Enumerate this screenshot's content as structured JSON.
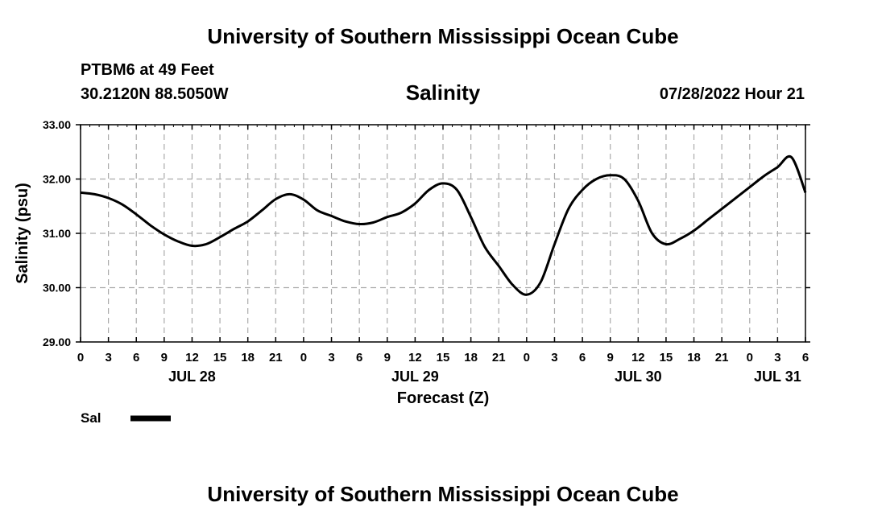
{
  "header": {
    "title": "University of Southern Mississippi Ocean Cube",
    "station": "PTBM6 at 49 Feet",
    "coords": "30.2120N  88.5050W",
    "datetime": "07/28/2022 Hour 21",
    "footer_title": "University of Southern Mississippi Ocean Cube"
  },
  "colors": {
    "line": "#000000",
    "grid": "#aaaaaa",
    "background": "#ffffff"
  },
  "chart_data": {
    "type": "line",
    "title": "Salinity",
    "xlabel": "Forecast (Z)",
    "ylabel": "Salinity (psu)",
    "xlim": [
      0,
      78
    ],
    "ylim": [
      29.0,
      33.0
    ],
    "grid": true,
    "y_ticks": [
      29.0,
      30.0,
      31.0,
      32.0,
      33.0
    ],
    "y_tick_labels": [
      "29.00",
      "30.00",
      "31.00",
      "32.00",
      "33.00"
    ],
    "x_tick_labels": [
      "0",
      "3",
      "6",
      "9",
      "12",
      "15",
      "18",
      "21",
      "0",
      "3",
      "6",
      "9",
      "12",
      "15",
      "18",
      "21",
      "0",
      "3",
      "6",
      "9",
      "12",
      "15",
      "18",
      "21",
      "0",
      "3",
      "6"
    ],
    "date_labels": [
      {
        "label": "JUL 28",
        "hour": 12
      },
      {
        "label": "JUL 29",
        "hour": 36
      },
      {
        "label": "JUL 30",
        "hour": 60
      },
      {
        "label": "JUL 31",
        "hour": 75
      }
    ],
    "legend": {
      "label": "Sal",
      "placement": "bottom-left"
    },
    "series": [
      {
        "name": "Sal",
        "x": [
          0,
          1.5,
          3,
          4.5,
          6,
          7.5,
          9,
          10.5,
          12,
          13.5,
          15,
          16.5,
          18,
          19.5,
          21,
          22.5,
          24,
          25.5,
          27,
          28.5,
          30,
          31.5,
          33,
          34.5,
          36,
          37.5,
          39,
          40.5,
          42,
          43.5,
          45,
          46.5,
          48,
          49.5,
          51,
          52.5,
          54,
          55.5,
          57,
          58.5,
          60,
          61.5,
          63,
          64.5,
          66,
          67.5,
          69,
          70.5,
          72,
          73.5,
          75,
          76.5,
          78
        ],
        "values": [
          31.75,
          31.72,
          31.65,
          31.53,
          31.35,
          31.15,
          30.98,
          30.85,
          30.77,
          30.8,
          30.93,
          31.08,
          31.22,
          31.42,
          31.63,
          31.72,
          31.62,
          31.42,
          31.32,
          31.22,
          31.17,
          31.2,
          31.3,
          31.38,
          31.55,
          31.8,
          31.92,
          31.8,
          31.3,
          30.75,
          30.4,
          30.05,
          29.87,
          30.1,
          30.8,
          31.45,
          31.8,
          32.0,
          32.07,
          32.0,
          31.6,
          31.0,
          30.8,
          30.9,
          31.05,
          31.25,
          31.45,
          31.65,
          31.85,
          32.05,
          32.22,
          32.4,
          31.75
        ]
      }
    ]
  }
}
